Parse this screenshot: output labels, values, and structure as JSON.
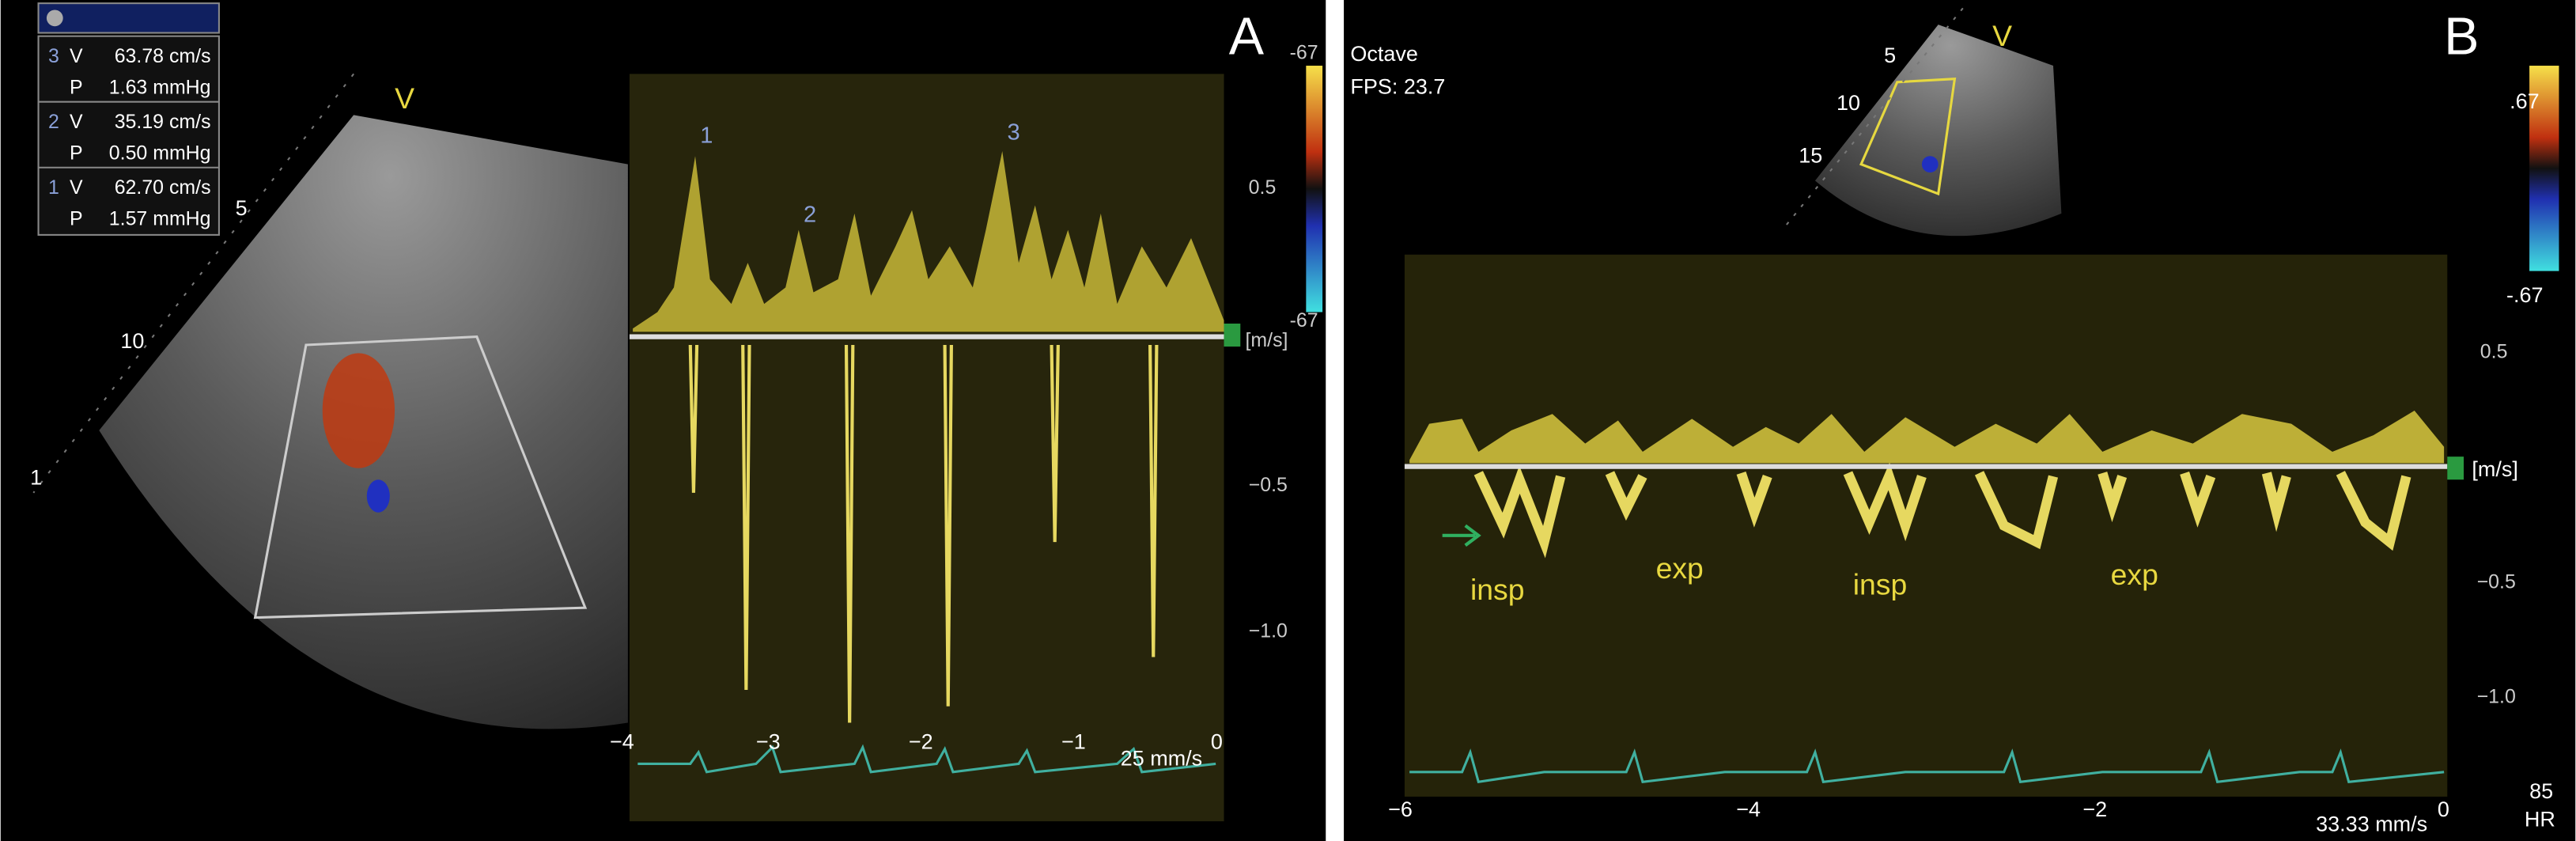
{
  "panel_a": {
    "label": "A",
    "measurements": [
      {
        "index": "3",
        "v_key": "V",
        "v": "63.78 cm/s",
        "p_key": "P",
        "p": "1.63 mmHg"
      },
      {
        "index": "2",
        "v_key": "V",
        "v": "35.19 cm/s",
        "p_key": "P",
        "p": "0.50 mmHg"
      },
      {
        "index": "1",
        "v_key": "V",
        "v": "62.70 cm/s",
        "p_key": "P",
        "p": "1.57 mmHg"
      }
    ],
    "sector_label": "V",
    "depth_marks": [
      "5",
      "10",
      "1"
    ],
    "color_scale": {
      "top": "-67",
      "bottom": "-67"
    },
    "velocity_ticks": [
      "0.5",
      "−0.5",
      "−1.0"
    ],
    "unit": "[m/s]",
    "cursor_labels": [
      "1",
      "2",
      "3"
    ],
    "time_ticks": [
      "−4",
      "−3",
      "−2",
      "−1",
      "0"
    ],
    "sweep": "25 mm/s"
  },
  "panel_b": {
    "label": "B",
    "header": [
      "Octave",
      "FPS: 23.7"
    ],
    "sector_label": "V",
    "depth_marks": [
      "5",
      "10",
      "15"
    ],
    "color_scale": {
      "top": ".67",
      "bottom": "-.67"
    },
    "velocity_ticks": [
      "0.5",
      "−0.5",
      "−1.0"
    ],
    "unit": "[m/s]",
    "annotations": [
      "insp",
      "exp",
      "insp",
      "exp"
    ],
    "time_ticks": [
      "−6",
      "−4",
      "−2",
      "0"
    ],
    "sweep": "33.33 mm/s",
    "heart_rate": {
      "value": "85",
      "label": "HR"
    }
  }
}
